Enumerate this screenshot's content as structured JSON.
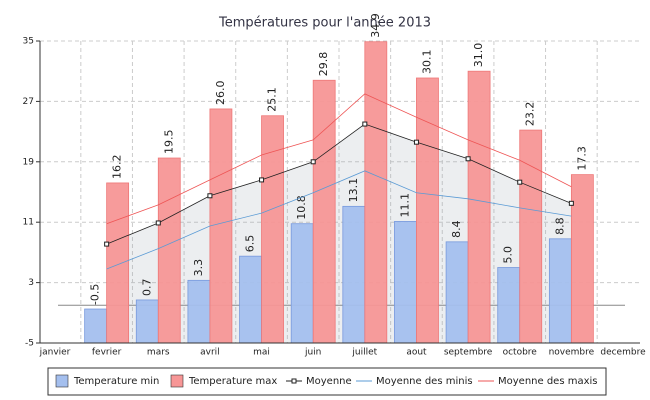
{
  "chart_data": {
    "type": "bar",
    "title": "Températures pour l'année 2013",
    "categories": [
      "janvier",
      "fevrier",
      "mars",
      "avril",
      "mai",
      "juin",
      "juillet",
      "aout",
      "septembre",
      "octobre",
      "novembre",
      "decembre"
    ],
    "ylim": [
      -5,
      35
    ],
    "yticks": [
      -5,
      3,
      11,
      19,
      27,
      35
    ],
    "grid": true,
    "legend": "bottom",
    "series": [
      {
        "name": "Temperature min",
        "type": "bar",
        "color": "#a4bfee",
        "values": [
          null,
          -0.5,
          0.7,
          3.3,
          6.5,
          10.8,
          13.1,
          11.1,
          8.4,
          5.0,
          8.8,
          null
        ],
        "value_labels": [
          null,
          "-0.5",
          "0.7",
          "3.3",
          "6.5",
          "10.8",
          "13.1",
          "11.1",
          "8.4",
          "5.0",
          "8.8",
          null
        ]
      },
      {
        "name": "Temperature max",
        "type": "bar",
        "color": "#f79696",
        "values": [
          null,
          16.2,
          19.5,
          26.0,
          25.1,
          29.8,
          34.9,
          30.1,
          31.0,
          23.2,
          17.3,
          null
        ],
        "value_labels": [
          null,
          "16.2",
          "19.5",
          "26.0",
          "25.1",
          "29.8",
          "34.9",
          "30.1",
          "31.0",
          "23.2",
          "17.3",
          null
        ]
      },
      {
        "name": "Moyenne",
        "type": "line",
        "color": "#222222",
        "marker": true,
        "fill": true,
        "values": [
          null,
          8.1,
          10.9,
          14.5,
          16.6,
          19.0,
          24.0,
          21.6,
          19.4,
          16.3,
          13.5,
          null
        ]
      },
      {
        "name": "Moyenne des minis",
        "type": "line",
        "color": "#5b9bd5",
        "values": [
          null,
          4.8,
          7.5,
          10.5,
          12.2,
          14.9,
          17.8,
          14.9,
          14.1,
          12.9,
          11.8,
          null
        ]
      },
      {
        "name": "Moyenne des maxis",
        "type": "line",
        "color": "#ee5555",
        "values": [
          null,
          10.8,
          13.3,
          16.6,
          19.9,
          21.9,
          28.0,
          24.9,
          21.9,
          19.2,
          15.7,
          null
        ]
      }
    ]
  }
}
